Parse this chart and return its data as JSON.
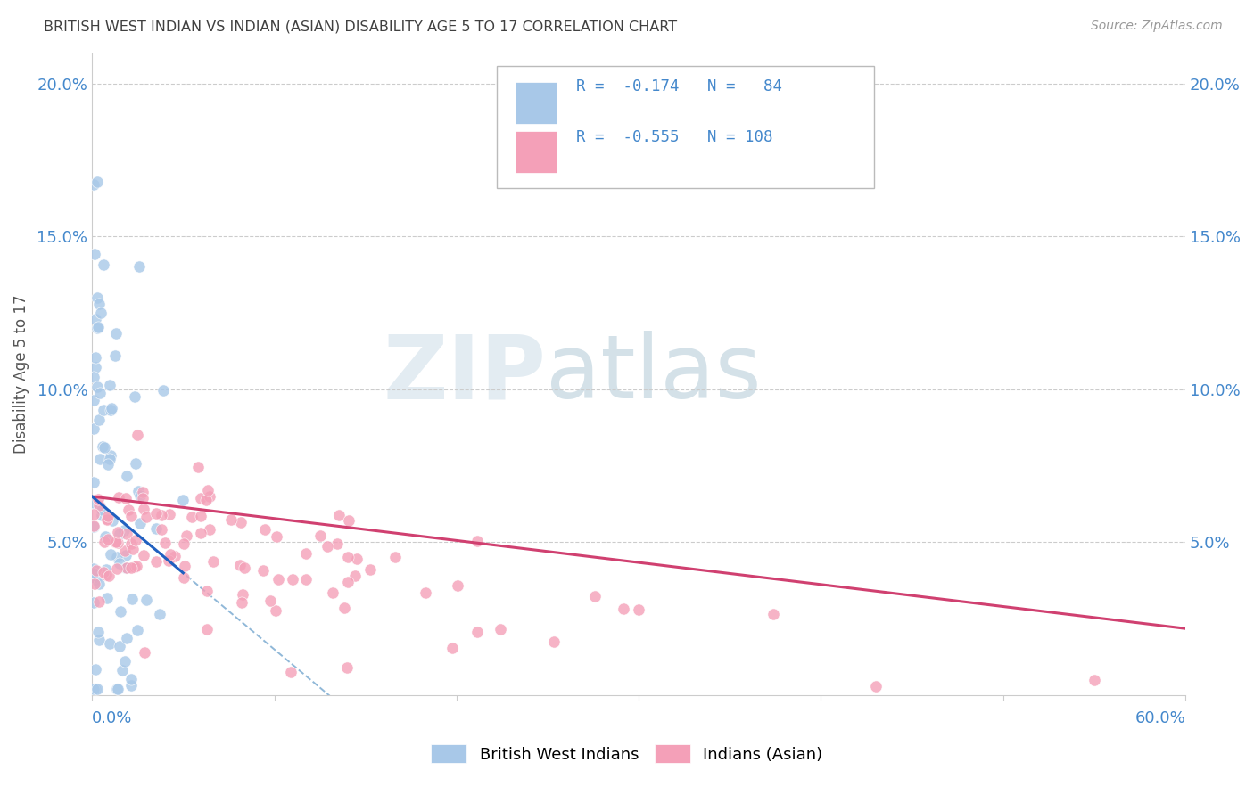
{
  "title": "BRITISH WEST INDIAN VS INDIAN (ASIAN) DISABILITY AGE 5 TO 17 CORRELATION CHART",
  "source": "Source: ZipAtlas.com",
  "ylabel": "Disability Age 5 to 17",
  "xlim": [
    0.0,
    0.6
  ],
  "ylim": [
    0.0,
    0.21
  ],
  "ytick_vals": [
    0.05,
    0.1,
    0.15,
    0.2
  ],
  "ytick_labels": [
    "5.0%",
    "10.0%",
    "15.0%",
    "20.0%"
  ],
  "blue_color": "#a8c8e8",
  "pink_color": "#f4a0b8",
  "blue_line_color": "#2060c0",
  "pink_line_color": "#d04070",
  "dashed_line_color": "#90b8d8",
  "title_color": "#404040",
  "axis_label_color": "#4488cc",
  "background_color": "#ffffff",
  "grid_color": "#cccccc",
  "watermark_zip_color": "#c8dce8",
  "watermark_atlas_color": "#a8c4d8",
  "legend_blue_r": "R = ",
  "legend_blue_rval": "-0.174",
  "legend_blue_n": "N= ",
  "legend_blue_nval": "84",
  "legend_pink_r": "R = ",
  "legend_pink_rval": "-0.555",
  "legend_pink_n": "N= ",
  "legend_pink_nval": "108",
  "blue_label": "British West Indians",
  "pink_label": "Indians (Asian)"
}
